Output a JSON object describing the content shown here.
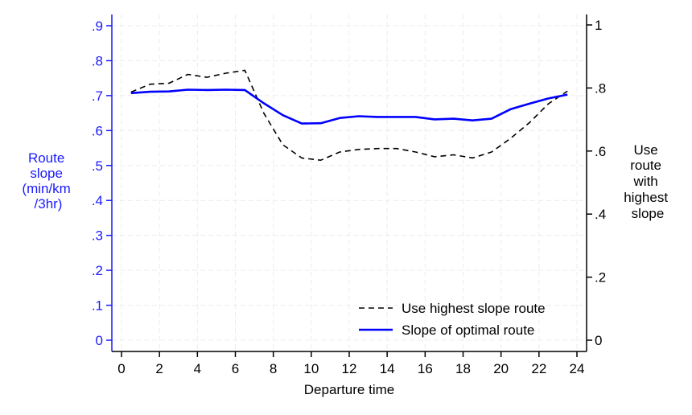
{
  "colors": {
    "left_axis": "#1a1aff",
    "right_axis": "#000000",
    "grid": "#ececec",
    "series_optimal": "#0000ff",
    "series_highest": "#000000"
  },
  "chart_data": {
    "type": "line",
    "xlabel": "Departure time",
    "ylabel_left_lines": [
      "Route",
      "slope",
      "(min/km",
      "/3hr)"
    ],
    "ylabel_right_lines": [
      "Use",
      "route",
      "with",
      "highest",
      "slope"
    ],
    "xlim": [
      0,
      24
    ],
    "ylim_left": [
      0,
      0.9
    ],
    "ylim_right": [
      0,
      1
    ],
    "x_ticks": [
      0,
      2,
      4,
      6,
      8,
      10,
      12,
      14,
      16,
      18,
      20,
      22,
      24
    ],
    "y_left_ticks": [
      {
        "value": 0,
        "label": "0"
      },
      {
        "value": 0.1,
        "label": ".1"
      },
      {
        "value": 0.2,
        "label": ".2"
      },
      {
        "value": 0.3,
        "label": ".3"
      },
      {
        "value": 0.4,
        "label": ".4"
      },
      {
        "value": 0.5,
        "label": ".5"
      },
      {
        "value": 0.6,
        "label": ".6"
      },
      {
        "value": 0.7,
        "label": ".7"
      },
      {
        "value": 0.8,
        "label": ".8"
      },
      {
        "value": 0.9,
        "label": ".9"
      }
    ],
    "y_right_ticks": [
      {
        "value": 0,
        "label": "0"
      },
      {
        "value": 0.2,
        "label": ".2"
      },
      {
        "value": 0.4,
        "label": ".4"
      },
      {
        "value": 0.6,
        "label": ".6"
      },
      {
        "value": 0.8,
        "label": ".8"
      },
      {
        "value": 1,
        "label": "1"
      }
    ],
    "grid": true,
    "legend_position": "bottom-right",
    "series": [
      {
        "name": "Use highest slope route",
        "axis": "right",
        "style": "dashed",
        "x": [
          0.5,
          1.5,
          2.5,
          3.5,
          4.5,
          5.5,
          6.5,
          7.5,
          8.5,
          9.5,
          10.5,
          11.5,
          12.5,
          13.5,
          14.5,
          15.5,
          16.5,
          17.5,
          18.5,
          19.5,
          20.5,
          21.5,
          22.5,
          23.5
        ],
        "values": [
          0.787,
          0.812,
          0.815,
          0.843,
          0.834,
          0.847,
          0.856,
          0.72,
          0.62,
          0.578,
          0.571,
          0.597,
          0.605,
          0.608,
          0.608,
          0.597,
          0.582,
          0.588,
          0.578,
          0.597,
          0.64,
          0.69,
          0.75,
          0.79
        ]
      },
      {
        "name": "Slope of optimal route",
        "axis": "left",
        "style": "solid",
        "x": [
          0.5,
          1.5,
          2.5,
          3.5,
          4.5,
          5.5,
          6.5,
          7.5,
          8.5,
          9.5,
          10.5,
          11.5,
          12.5,
          13.5,
          14.5,
          15.5,
          16.5,
          17.5,
          18.5,
          19.5,
          20.5,
          21.5,
          22.5,
          23.5
        ],
        "values": [
          0.707,
          0.711,
          0.712,
          0.717,
          0.716,
          0.717,
          0.716,
          0.678,
          0.644,
          0.62,
          0.621,
          0.636,
          0.641,
          0.639,
          0.639,
          0.639,
          0.632,
          0.634,
          0.629,
          0.634,
          0.661,
          0.677,
          0.692,
          0.703
        ]
      }
    ]
  }
}
